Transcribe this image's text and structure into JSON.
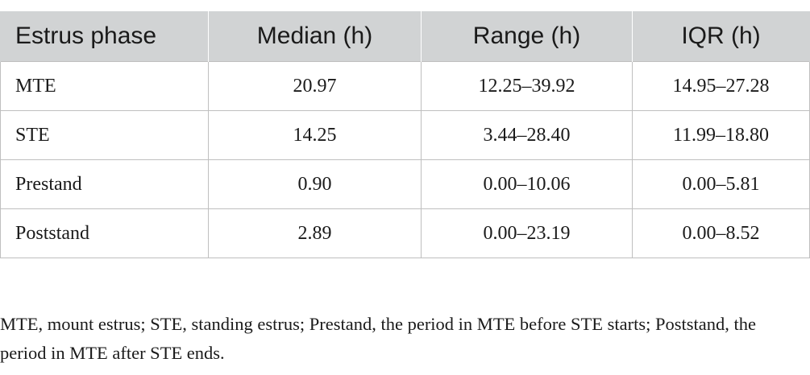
{
  "table": {
    "headers": [
      "Estrus phase",
      "Median (h)",
      "Range (h)",
      "IQR (h)"
    ],
    "rows": [
      [
        "MTE",
        "20.97",
        "12.25–39.92",
        "14.95–27.28"
      ],
      [
        "STE",
        "14.25",
        "3.44–28.40",
        "11.99–18.80"
      ],
      [
        "Prestand",
        "0.90",
        "0.00–10.06",
        "0.00–5.81"
      ],
      [
        "Poststand",
        "2.89",
        "0.00–23.19",
        "0.00–8.52"
      ]
    ]
  },
  "footnote": "MTE, mount estrus; STE, standing estrus; Prestand, the period in MTE before STE starts; Poststand, the period in MTE after STE ends."
}
